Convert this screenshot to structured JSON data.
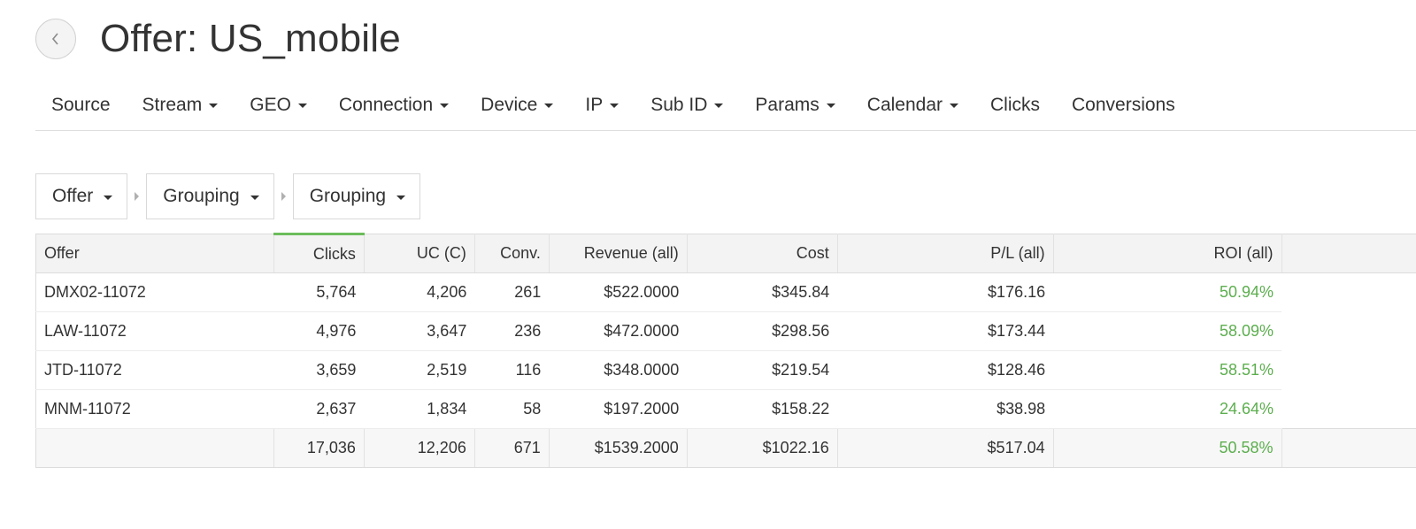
{
  "header": {
    "title": "Offer: US_mobile",
    "back_icon": "chevron-left-icon"
  },
  "nav": {
    "items": [
      {
        "label": "Source",
        "dropdown": false
      },
      {
        "label": "Stream",
        "dropdown": true
      },
      {
        "label": "GEO",
        "dropdown": true
      },
      {
        "label": "Connection",
        "dropdown": true
      },
      {
        "label": "Device",
        "dropdown": true
      },
      {
        "label": "IP",
        "dropdown": true
      },
      {
        "label": "Sub ID",
        "dropdown": true
      },
      {
        "label": "Params",
        "dropdown": true
      },
      {
        "label": "Calendar",
        "dropdown": true
      },
      {
        "label": "Clicks",
        "dropdown": false
      },
      {
        "label": "Conversions",
        "dropdown": false
      }
    ]
  },
  "grouping": {
    "selectors": [
      "Offer",
      "Grouping",
      "Grouping"
    ]
  },
  "table": {
    "columns": [
      "Offer",
      "Clicks",
      "UC (C)",
      "Conv.",
      "Revenue (all)",
      "Cost",
      "P/L (all)",
      "ROI (all)"
    ],
    "sorted_column": "Clicks",
    "rows": [
      [
        "DMX02-11072",
        "5,764",
        "4,206",
        "261",
        "$522.0000",
        "$345.84",
        "$176.16",
        "50.94%"
      ],
      [
        "LAW-11072",
        "4,976",
        "3,647",
        "236",
        "$472.0000",
        "$298.56",
        "$173.44",
        "58.09%"
      ],
      [
        "JTD-11072",
        "3,659",
        "2,519",
        "116",
        "$348.0000",
        "$219.54",
        "$128.46",
        "58.51%"
      ],
      [
        "MNM-11072",
        "2,637",
        "1,834",
        "58",
        "$197.2000",
        "$158.22",
        "$38.98",
        "24.64%"
      ]
    ],
    "totals": [
      "",
      "17,036",
      "12,206",
      "671",
      "$1539.2000",
      "$1022.16",
      "$517.04",
      "50.58%"
    ]
  },
  "colors": {
    "accent_green": "#5cae4e",
    "sort_indicator": "#6bbd5b"
  }
}
